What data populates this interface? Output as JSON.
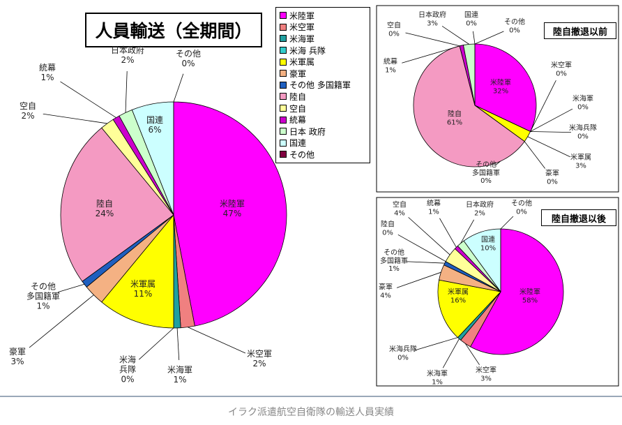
{
  "caption": "イラク派遣航空自衛隊の輸送人員実績",
  "chart_data": [
    {
      "type": "pie",
      "title": "人員輸送（全期間）",
      "legend": [
        "米陸軍",
        "米空軍",
        "米海軍",
        "米海 兵隊",
        "米軍属",
        "豪軍",
        "その他 多国籍軍",
        "陸自",
        "空自",
        "統幕",
        "日本 政府",
        "国連",
        "その他"
      ],
      "categories": [
        "米陸軍",
        "米空軍",
        "米海軍",
        "米海\n兵隊",
        "米軍属",
        "豪軍",
        "その他\n多国籍軍",
        "陸自",
        "空自",
        "統幕",
        "日本政府",
        "国連",
        "その他"
      ],
      "values": [
        47,
        2,
        1,
        0,
        11,
        3,
        1,
        24,
        2,
        1,
        2,
        6,
        0
      ],
      "value_labels": [
        "47%",
        "2%",
        "1%",
        "0%",
        "11%",
        "3%",
        "1%",
        "24%",
        "2%",
        "1%",
        "2%",
        "6%",
        "0%"
      ],
      "colors": [
        "#ff00ff",
        "#f08080",
        "#20a0a0",
        "#33cccc",
        "#ffff00",
        "#f4b183",
        "#1f5fbf",
        "#f49ac2",
        "#ffff99",
        "#cc00cc",
        "#ccffcc",
        "#ccffff",
        "#800040"
      ]
    },
    {
      "type": "pie",
      "title": "陸自撤退以前",
      "categories": [
        "米陸軍",
        "米空軍",
        "米海軍",
        "米海兵隊",
        "米軍属",
        "豪軍",
        "その他\n多国籍軍",
        "陸自",
        "空自",
        "統幕",
        "日本政府",
        "国連",
        "その他"
      ],
      "values": [
        32,
        0,
        0,
        0,
        3,
        0,
        0,
        61,
        0,
        1,
        3,
        0,
        0
      ],
      "value_labels": [
        "32%",
        "0%",
        "0%",
        "0%",
        "3%",
        "0%",
        "0%",
        "61%",
        "0%",
        "1%",
        "3%",
        "0%",
        "0%"
      ],
      "colors": [
        "#ff00ff",
        "#f08080",
        "#20a0a0",
        "#33cccc",
        "#ffff00",
        "#f4b183",
        "#1f5fbf",
        "#f49ac2",
        "#ffff99",
        "#cc00cc",
        "#ccffcc",
        "#ccffff",
        "#800040"
      ]
    },
    {
      "type": "pie",
      "title": "陸自撤退以後",
      "categories": [
        "米陸軍",
        "米空軍",
        "米海軍",
        "米海兵隊",
        "米軍属",
        "豪軍",
        "その他\n多国籍軍",
        "陸自",
        "空自",
        "統幕",
        "日本政府",
        "国連",
        "その他"
      ],
      "values": [
        58,
        3,
        1,
        0,
        16,
        4,
        1,
        0,
        4,
        1,
        2,
        10,
        0
      ],
      "value_labels": [
        "58%",
        "3%",
        "1%",
        "0%",
        "16%",
        "4%",
        "1%",
        "0%",
        "4%",
        "1%",
        "2%",
        "10%",
        "0%"
      ],
      "colors": [
        "#ff00ff",
        "#f08080",
        "#20a0a0",
        "#33cccc",
        "#ffff00",
        "#f4b183",
        "#1f5fbf",
        "#f49ac2",
        "#ffff99",
        "#cc00cc",
        "#ccffcc",
        "#ccffff",
        "#800040"
      ]
    }
  ]
}
